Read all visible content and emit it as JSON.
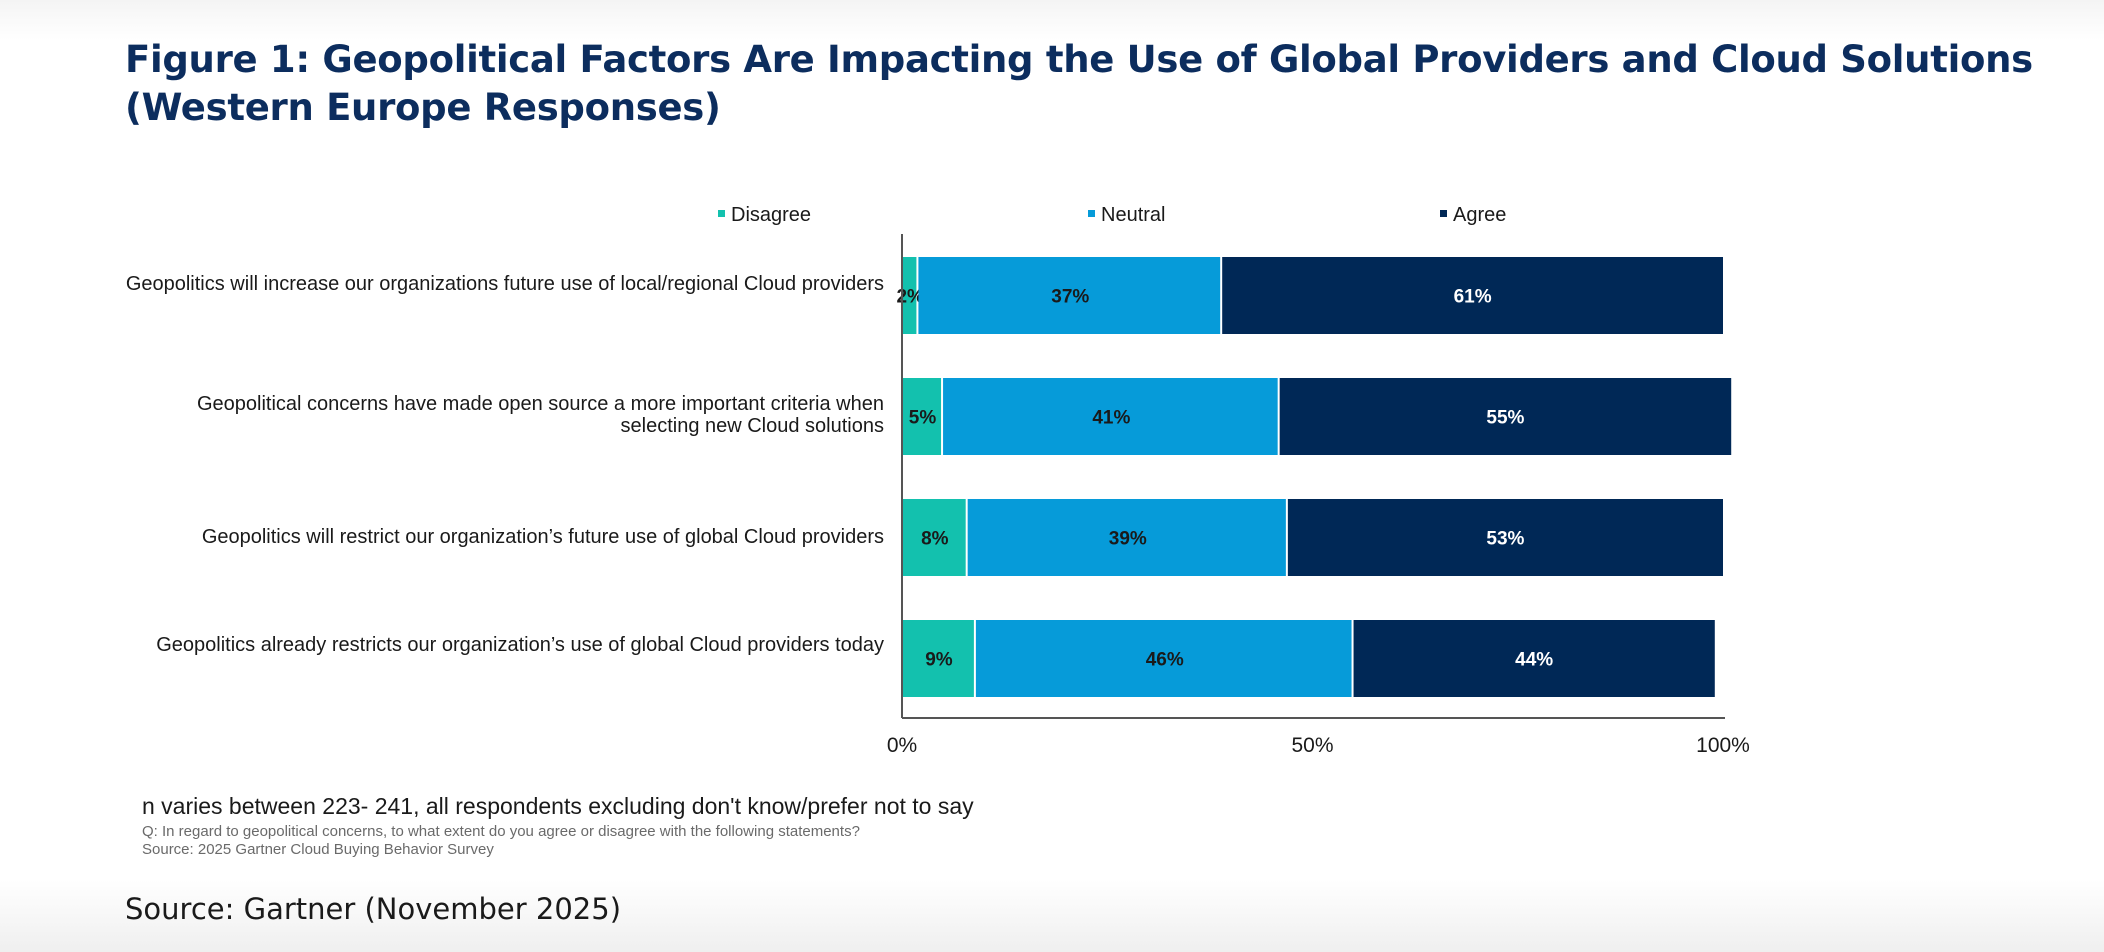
{
  "figure": {
    "title": "Figure 1: Geopolitical Factors Are Impacting the Use of Global Providers and Cloud Solutions (Western Europe Responses)",
    "source": "Source: Gartner (November 2025)"
  },
  "notes": {
    "n_note": "n varies between 223- 241, all respondents excluding don't know/prefer not to say",
    "question": "Q: In regard to geopolitical concerns, to what extent do you agree or disagree with the following statements?",
    "survey_source": "Source: 2025 Gartner Cloud Buying Behavior Survey"
  },
  "colors": {
    "disagree": "#13c1ae",
    "neutral": "#069bd9",
    "agree": "#002856",
    "title": "#0c2d5e"
  },
  "chart_data": {
    "type": "bar",
    "orientation": "horizontal",
    "stacked": true,
    "title": "",
    "xlabel": "",
    "ylabel": "",
    "xlim": [
      0,
      100
    ],
    "x_ticks": [
      "0%",
      "50%",
      "100%"
    ],
    "legend_position": "top",
    "categories": [
      "Geopolitics will increase our organizations future use of local/regional Cloud providers",
      "Geopolitical concerns have made open source a more important criteria when selecting new Cloud solutions",
      "Geopolitics will restrict our organization’s future use of global Cloud providers",
      "Geopolitics already restricts our organization’s use of global Cloud providers today"
    ],
    "series": [
      {
        "name": "Disagree",
        "values": [
          2,
          5,
          8,
          9
        ]
      },
      {
        "name": "Neutral",
        "values": [
          37,
          41,
          39,
          46
        ]
      },
      {
        "name": "Agree",
        "values": [
          61,
          55,
          53,
          44
        ]
      }
    ]
  }
}
